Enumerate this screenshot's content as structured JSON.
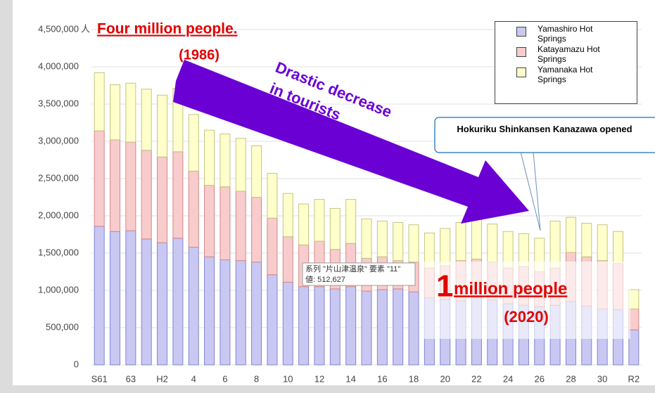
{
  "chart_data": {
    "type": "stacked_bar",
    "y_unit": "人",
    "categories": [
      "S61",
      null,
      "63",
      null,
      "H2",
      null,
      "4",
      null,
      "6",
      null,
      "8",
      null,
      "10",
      null,
      "12",
      null,
      "14",
      null,
      "16",
      null,
      "18",
      null,
      "20",
      null,
      "22",
      null,
      "24",
      null,
      "26",
      null,
      "28",
      null,
      "30",
      null,
      "R2"
    ],
    "series": [
      {
        "name": "Yamashiro Hot Springs",
        "color": "#c8c8f2",
        "edge": "#8484d4",
        "values": [
          1860000,
          1790000,
          1800000,
          1690000,
          1640000,
          1700000,
          1580000,
          1450000,
          1410000,
          1400000,
          1380000,
          1210000,
          1110000,
          1050000,
          1050000,
          1020000,
          1050000,
          990000,
          1010000,
          1020000,
          980000,
          900000,
          880000,
          860000,
          900000,
          870000,
          820000,
          800000,
          780000,
          800000,
          850000,
          790000,
          750000,
          740000,
          470000
        ]
      },
      {
        "name": "Katayamazu Hot Springs",
        "color": "#f8cccc",
        "edge": "#d48888",
        "values": [
          1280000,
          1230000,
          1190000,
          1190000,
          1150000,
          1160000,
          1020000,
          960000,
          980000,
          930000,
          870000,
          760000,
          610000,
          560000,
          610000,
          530000,
          580000,
          440000,
          440000,
          380000,
          400000,
          400000,
          450000,
          540000,
          520000,
          510000,
          480000,
          520000,
          470000,
          500000,
          660000,
          660000,
          650000,
          620000,
          280000
        ]
      },
      {
        "name": "Yamanaka Hot Springs",
        "color": "#ffffcc",
        "edge": "#c4c484",
        "values": [
          780000,
          740000,
          790000,
          820000,
          830000,
          850000,
          760000,
          740000,
          710000,
          710000,
          690000,
          600000,
          580000,
          550000,
          560000,
          550000,
          590000,
          530000,
          480000,
          510000,
          500000,
          470000,
          500000,
          510000,
          540000,
          510000,
          490000,
          440000,
          450000,
          630000,
          470000,
          450000,
          480000,
          430000,
          260000
        ]
      }
    ],
    "ylim": [
      0,
      4500000
    ],
    "yticks": [
      0,
      {
        "value": 500000,
        "label": "500,000"
      },
      {
        "value": 1000000,
        "label": "1,000,000"
      },
      {
        "value": 1500000,
        "label": "1,500,000"
      },
      {
        "value": 2000000,
        "label": "2,000,000"
      },
      {
        "value": 2500000,
        "label": "2,500,000"
      },
      {
        "value": 3000000,
        "label": "3,000,000"
      },
      {
        "value": 3500000,
        "label": "3,500,000"
      },
      {
        "value": 4000000,
        "label": "4,000,000"
      },
      {
        "value": 4500000,
        "label": "4,500,000"
      }
    ],
    "grid": true,
    "annotations": {
      "peak": "Four million people.",
      "peak_year": "(1986)",
      "decrease_1": "Drastic decrease",
      "decrease_2": "in tourists",
      "callout": "Hokuriku Shinkansen Kanazawa opened",
      "low_num": "1",
      "low": " million people",
      "low_year": "(2020)",
      "tooltip_1": "系列 \"片山津温泉\" 要素 \"11\"",
      "tooltip_2": "値: 512,627"
    }
  }
}
